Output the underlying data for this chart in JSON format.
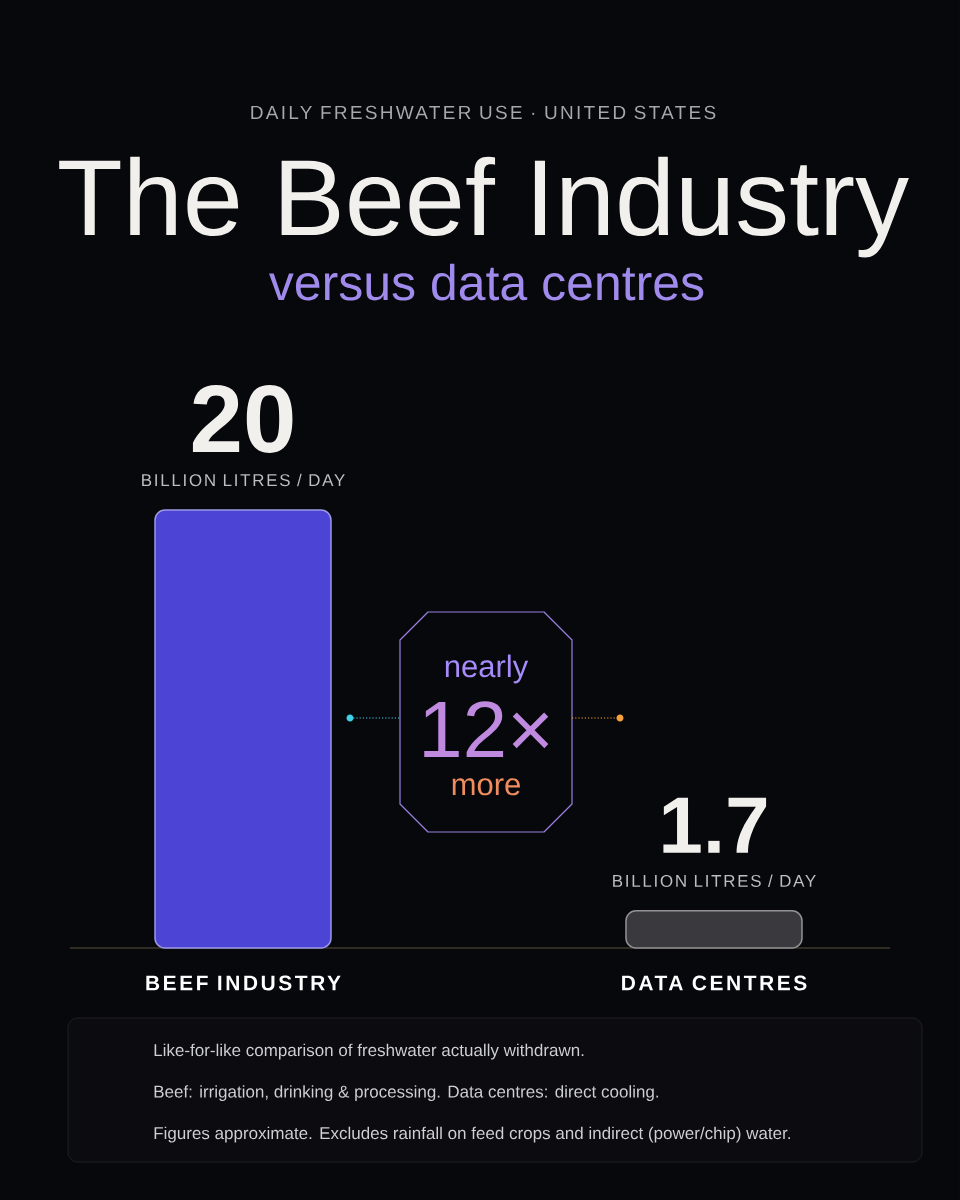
{
  "chart_data": {
    "type": "bar",
    "title": "The Beef Industry",
    "subtitle": "versus data centres",
    "categories": [
      "BEEF INDUSTRY",
      "DATA CENTRES"
    ],
    "values": [
      20,
      1.7
    ],
    "colors": [
      "#4b44d4",
      "#3a393d"
    ],
    "ylim": [
      0,
      20
    ],
    "data_labels": true,
    "tick_labels": "x",
    "annotations": [
      "DAILY FRESHWATER USE · UNITED STATES",
      {
        "text": "BILLION LITRES / DAY",
        "x": "BEEF INDUSTRY",
        "y": 20
      },
      {
        "text": "BILLION LITRES / DAY",
        "x": "DATA CENTRES",
        "y": 1.7
      },
      "nearly",
      "12×",
      "more",
      "Like-for-like comparison of freshwater actually withdrawn.",
      "Beef: irrigation, drinking & processing. Data centres: direct cooling.",
      "Figures approximate. Excludes rainfall on feed crops and indirect (power/chip) water."
    ]
  }
}
